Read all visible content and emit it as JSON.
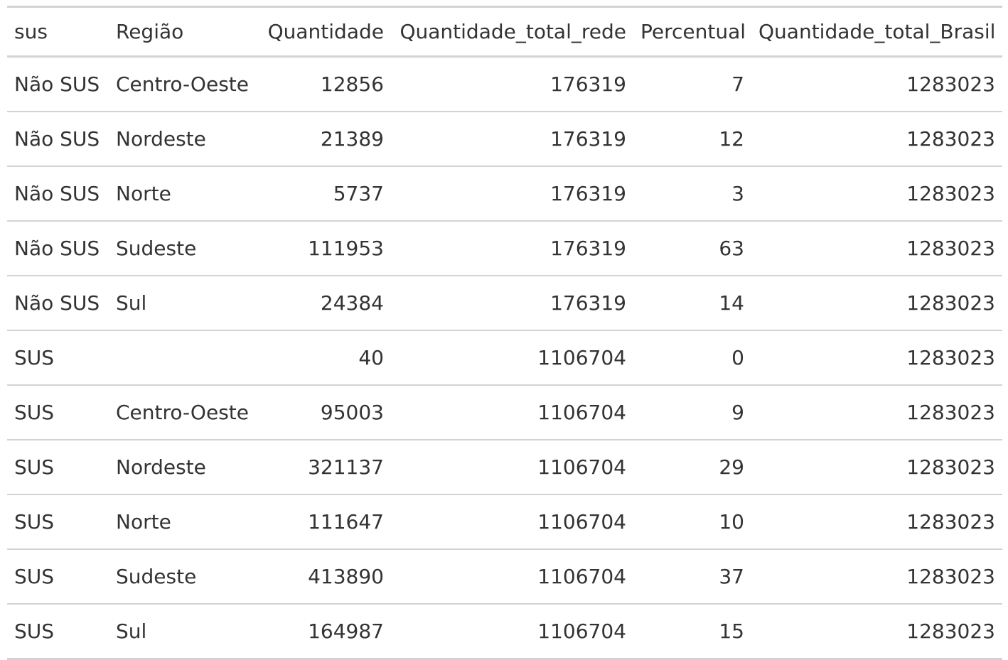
{
  "table": {
    "columns": [
      {
        "label": "sus",
        "align": "left"
      },
      {
        "label": "Região",
        "align": "left"
      },
      {
        "label": "Quantidade",
        "align": "right"
      },
      {
        "label": "Quantidade_total_rede",
        "align": "right"
      },
      {
        "label": "Percentual",
        "align": "right"
      },
      {
        "label": "Quantidade_total_Brasil",
        "align": "right"
      }
    ],
    "rows": [
      [
        "Não SUS",
        "Centro-Oeste",
        "12856",
        "176319",
        "7",
        "1283023"
      ],
      [
        "Não SUS",
        "Nordeste",
        "21389",
        "176319",
        "12",
        "1283023"
      ],
      [
        "Não SUS",
        "Norte",
        "5737",
        "176319",
        "3",
        "1283023"
      ],
      [
        "Não SUS",
        "Sudeste",
        "111953",
        "176319",
        "63",
        "1283023"
      ],
      [
        "Não SUS",
        "Sul",
        "24384",
        "176319",
        "14",
        "1283023"
      ],
      [
        "SUS",
        "",
        "40",
        "1106704",
        "0",
        "1283023"
      ],
      [
        "SUS",
        "Centro-Oeste",
        "95003",
        "1106704",
        "9",
        "1283023"
      ],
      [
        "SUS",
        "Nordeste",
        "321137",
        "1106704",
        "29",
        "1283023"
      ],
      [
        "SUS",
        "Norte",
        "111647",
        "1106704",
        "10",
        "1283023"
      ],
      [
        "SUS",
        "Sudeste",
        "413890",
        "1106704",
        "37",
        "1283023"
      ],
      [
        "SUS",
        "Sul",
        "164987",
        "1106704",
        "15",
        "1283023"
      ]
    ]
  }
}
